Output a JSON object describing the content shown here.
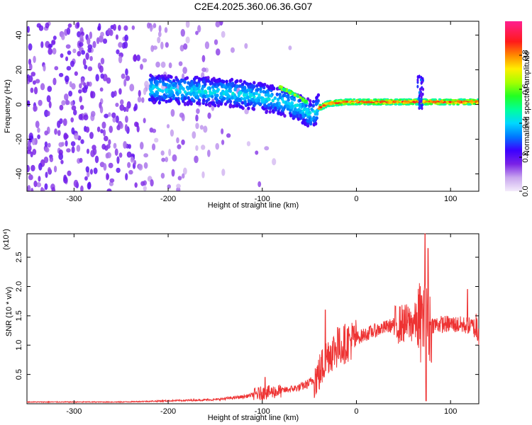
{
  "figure": {
    "title": "C2E4.2025.360.06.36.G07"
  },
  "chart_data": [
    {
      "type": "heatmap",
      "xlabel": "Height of straight line (km)",
      "ylabel": "Frequency (Hz)",
      "xlim": [
        -350,
        130
      ],
      "ylim": [
        -50,
        48
      ],
      "xticks": [
        -300,
        -200,
        -100,
        0,
        100
      ],
      "yticks": [
        -40,
        -20,
        0,
        20,
        40
      ],
      "colorbar": {
        "label": "Normalized spectral amplitude",
        "range": [
          0,
          1
        ],
        "ticks": [
          0.0,
          0.2,
          0.4,
          0.6,
          0.8
        ]
      },
      "trend": [
        {
          "x": -215,
          "y": 9
        },
        {
          "x": -180,
          "y": 8
        },
        {
          "x": -140,
          "y": 7
        },
        {
          "x": -110,
          "y": 5
        },
        {
          "x": -90,
          "y": 3
        },
        {
          "x": -75,
          "y": 1
        },
        {
          "x": -60,
          "y": -2
        },
        {
          "x": -48,
          "y": -6
        },
        {
          "x": -40,
          "y": -2
        },
        {
          "x": -30,
          "y": 0.5
        },
        {
          "x": -10,
          "y": 1.5
        },
        {
          "x": 20,
          "y": 1.5
        },
        {
          "x": 60,
          "y": 1.5
        },
        {
          "x": 70,
          "y": 1.5
        },
        {
          "x": 100,
          "y": 1.5
        },
        {
          "x": 130,
          "y": 1.5
        }
      ],
      "upper_branch": [
        {
          "x": -82,
          "y": 10
        },
        {
          "x": -70,
          "y": 7
        },
        {
          "x": -60,
          "y": 4
        },
        {
          "x": -52,
          "y": 1
        }
      ]
    },
    {
      "type": "line",
      "xlabel": "Height of straight line (km)",
      "ylabel": "SNR (10 * v/v)",
      "y_multiplier": "(x10⁴)",
      "xlim": [
        -350,
        130
      ],
      "ylim": [
        0,
        2.9
      ],
      "xticks": [
        -300,
        -200,
        -100,
        0,
        100
      ],
      "yticks": [
        0.5,
        1.0,
        1.5,
        2.0,
        2.5
      ],
      "series": [
        {
          "color": "#ee3333",
          "envelope": [
            {
              "x": -350,
              "y": 0.03
            },
            {
              "x": -250,
              "y": 0.03
            },
            {
              "x": -200,
              "y": 0.05
            },
            {
              "x": -150,
              "y": 0.07
            },
            {
              "x": -120,
              "y": 0.12
            },
            {
              "x": -100,
              "y": 0.18
            },
            {
              "x": -80,
              "y": 0.22
            },
            {
              "x": -60,
              "y": 0.28
            },
            {
              "x": -50,
              "y": 0.35
            },
            {
              "x": -40,
              "y": 0.5
            },
            {
              "x": -30,
              "y": 0.85
            },
            {
              "x": -20,
              "y": 0.95
            },
            {
              "x": -10,
              "y": 1.05
            },
            {
              "x": 0,
              "y": 1.12
            },
            {
              "x": 20,
              "y": 1.25
            },
            {
              "x": 40,
              "y": 1.35
            },
            {
              "x": 60,
              "y": 1.38
            },
            {
              "x": 68,
              "y": 1.4
            },
            {
              "x": 80,
              "y": 1.35
            },
            {
              "x": 100,
              "y": 1.36
            },
            {
              "x": 120,
              "y": 1.33
            },
            {
              "x": 130,
              "y": 1.32
            }
          ],
          "spikes": [
            {
              "x": -97,
              "y": 0.45
            },
            {
              "x": -33,
              "y": 1.6
            },
            {
              "x": -20,
              "y": 1.3
            },
            {
              "x": 70,
              "y": 1.7
            },
            {
              "x": 73,
              "y": 2.9
            },
            {
              "x": 76,
              "y": 2.65
            },
            {
              "x": 74,
              "y": 0.05
            },
            {
              "x": 118,
              "y": 1.95
            }
          ]
        }
      ]
    }
  ]
}
